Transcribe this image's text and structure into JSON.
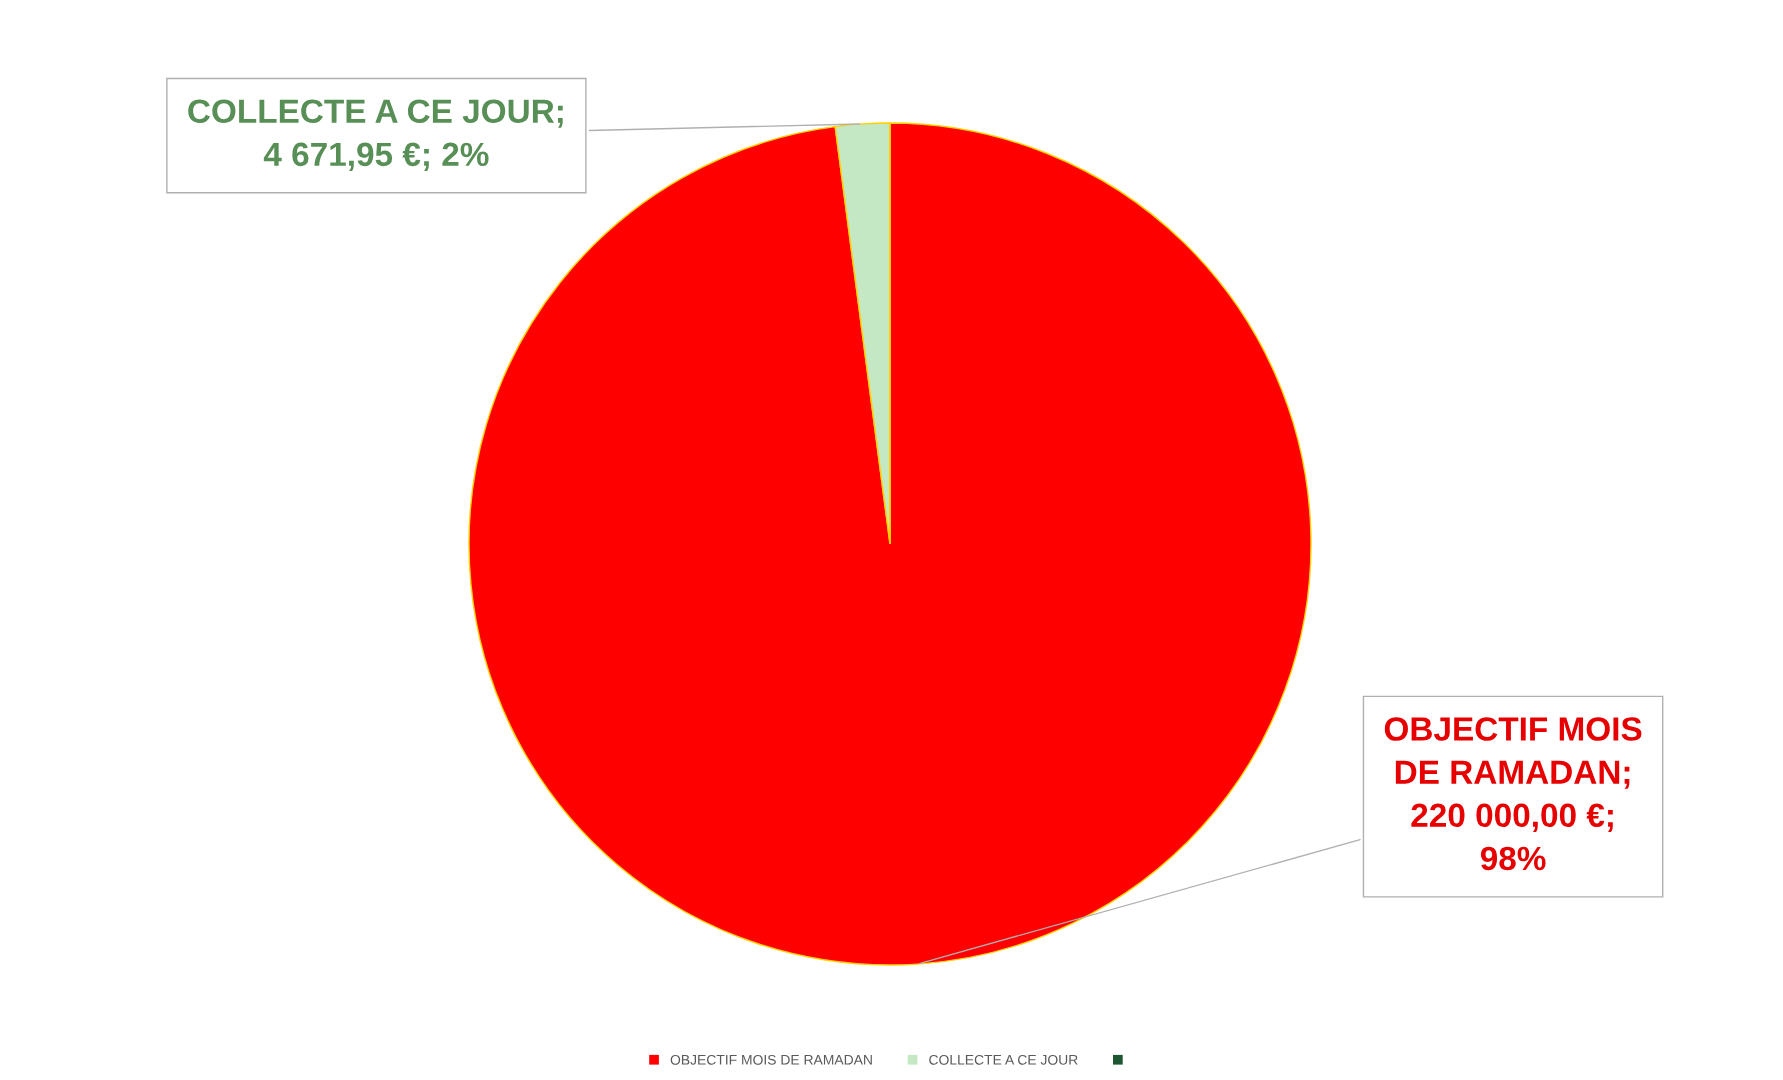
{
  "chart_data": {
    "type": "pie",
    "categories": [
      "OBJECTIF MOIS DE RAMADAN",
      "COLLECTE A CE JOUR",
      null
    ],
    "values": [
      220000,
      4671.95,
      0
    ],
    "colors": [
      "#ff0000",
      "#c3e8c3",
      "#1e5631"
    ],
    "value_labels": [
      "OBJECTIF MOIS\nDE RAMADAN;\n220 000,00 €;\n98%",
      "COLLECTE A CE JOUR;\n4 671,95 €; 2%",
      null
    ],
    "legend": "bottom"
  }
}
